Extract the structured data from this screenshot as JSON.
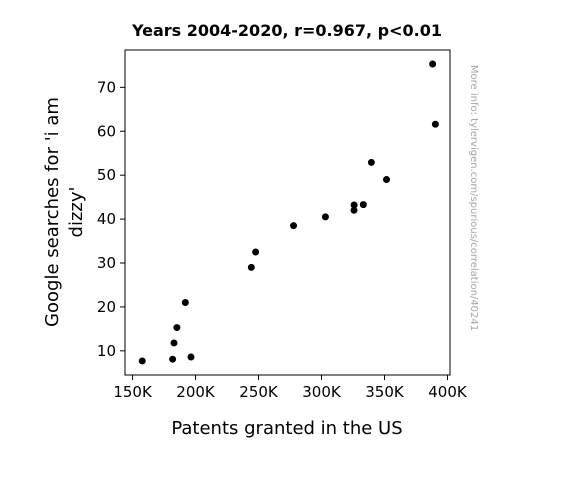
{
  "chart_data": {
    "type": "scatter",
    "title": "Years 2004-2020, r=0.967, p<0.01",
    "xlabel": "Patents granted in the US",
    "ylabel_lines": [
      "Google searches for 'i am",
      "dizzy'"
    ],
    "xlim": [
      144000,
      402000
    ],
    "ylim": [
      4.5,
      78.5
    ],
    "xticks": [
      150000,
      200000,
      250000,
      300000,
      350000,
      400000
    ],
    "xtick_labels": [
      "150K",
      "200K",
      "250K",
      "300K",
      "350K",
      "400K"
    ],
    "yticks": [
      10,
      20,
      30,
      40,
      50,
      60,
      70
    ],
    "ytick_labels": [
      "10",
      "20",
      "30",
      "40",
      "50",
      "60",
      "70"
    ],
    "grid": false,
    "marker_color": "#000000",
    "points": [
      {
        "x": 157700,
        "y": 7.7
      },
      {
        "x": 181800,
        "y": 8.1
      },
      {
        "x": 196400,
        "y": 8.6
      },
      {
        "x": 182900,
        "y": 11.8
      },
      {
        "x": 185200,
        "y": 15.3
      },
      {
        "x": 191900,
        "y": 21.0
      },
      {
        "x": 244300,
        "y": 29.0
      },
      {
        "x": 247700,
        "y": 32.5
      },
      {
        "x": 277800,
        "y": 38.5
      },
      {
        "x": 303100,
        "y": 40.5
      },
      {
        "x": 325800,
        "y": 42.0
      },
      {
        "x": 325900,
        "y": 43.2
      },
      {
        "x": 333200,
        "y": 43.3
      },
      {
        "x": 339600,
        "y": 52.9
      },
      {
        "x": 351600,
        "y": 49.0
      },
      {
        "x": 388200,
        "y": 75.3
      },
      {
        "x": 390400,
        "y": 61.6
      }
    ]
  },
  "watermark": "More info: tylervigen.com/spurious/correlation/40241"
}
